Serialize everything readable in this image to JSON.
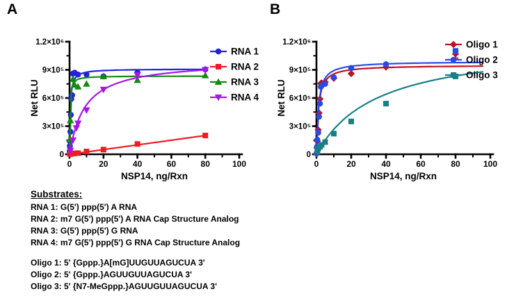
{
  "panels": [
    {
      "label": "A"
    },
    {
      "label": "B"
    }
  ],
  "chart_data": [
    {
      "type": "scatter",
      "panel": "A",
      "xlabel": "NSP14, ng/Rxn",
      "ylabel": "Net RLU",
      "xlim": [
        0,
        100
      ],
      "ylim": [
        0,
        1200000
      ],
      "grid": false,
      "legend_position": "right",
      "x_major_ticks": [
        0,
        20,
        40,
        60,
        80,
        100
      ],
      "x_minor_ticks": [
        10,
        30,
        50,
        70,
        90
      ],
      "y_major_ticks": [
        {
          "value": 0,
          "label": "0"
        },
        {
          "value": 300000,
          "label": "3×10⁵"
        },
        {
          "value": 600000,
          "label": "6×10⁵"
        },
        {
          "value": 900000,
          "label": "9×10⁵"
        },
        {
          "value": 1200000,
          "label": "1.2×10⁶"
        }
      ],
      "y_minor_ticks": [
        150000,
        450000,
        750000,
        1050000
      ],
      "series": [
        {
          "name": "RNA 1",
          "color": "#2323dd",
          "marker": "circle",
          "fit": {
            "type": "hyperbolic",
            "vmax": 910000,
            "km": 0.4
          },
          "curve_xmax": 80,
          "points": [
            [
              0.1,
              30000
            ],
            [
              0.2,
              90000
            ],
            [
              0.3,
              140000
            ],
            [
              0.5,
              240000
            ],
            [
              0.75,
              420000
            ],
            [
              1,
              590000
            ],
            [
              1.5,
              630000
            ],
            [
              2,
              860000
            ],
            [
              3,
              870000
            ],
            [
              5,
              850000
            ],
            [
              10,
              850000
            ],
            [
              20,
              830000
            ],
            [
              40,
              870000
            ],
            [
              80,
              905000
            ]
          ]
        },
        {
          "name": "RNA 2",
          "color": "#ee1c25",
          "marker": "square",
          "fit": {
            "type": "linear",
            "slope": 2500,
            "intercept": 0
          },
          "curve_xmax": 80,
          "points": [
            [
              0.25,
              2000
            ],
            [
              0.5,
              4000
            ],
            [
              1,
              6000
            ],
            [
              2,
              8000
            ],
            [
              3,
              10000
            ],
            [
              5,
              12000
            ],
            [
              10,
              30000
            ],
            [
              20,
              50000
            ],
            [
              40,
              110000
            ],
            [
              80,
              200000
            ]
          ]
        },
        {
          "name": "RNA 3",
          "color": "#128a12",
          "marker": "triangle-up",
          "fit": {
            "type": "hyperbolic",
            "vmax": 835000,
            "km": 0.22
          },
          "curve_xmax": 80,
          "points": [
            [
              0.25,
              160000
            ],
            [
              0.5,
              360000
            ],
            [
              2,
              800000
            ],
            [
              3,
              740000
            ],
            [
              5,
              720000
            ],
            [
              10,
              750000
            ],
            [
              20,
              830000
            ],
            [
              40,
              790000
            ],
            [
              80,
              840000
            ]
          ]
        },
        {
          "name": "RNA 4",
          "color": "#a915e8",
          "marker": "triangle-down",
          "fit": {
            "type": "hyperbolic",
            "vmax": 1000000,
            "km": 9
          },
          "curve_xmax": 80,
          "points": [
            [
              0.5,
              40000
            ],
            [
              2,
              150000
            ],
            [
              4,
              280000
            ],
            [
              5,
              330000
            ],
            [
              10,
              470000
            ],
            [
              20,
              690000
            ],
            [
              40,
              845000
            ],
            [
              80,
              900000
            ]
          ]
        }
      ]
    },
    {
      "type": "scatter",
      "panel": "B",
      "xlabel": "NSP14, ng/Rxn",
      "ylabel": "Net RLU",
      "xlim": [
        0,
        100
      ],
      "ylim": [
        0,
        1200000
      ],
      "grid": false,
      "legend_position": "right",
      "x_major_ticks": [
        0,
        20,
        40,
        60,
        80,
        100
      ],
      "x_minor_ticks": [
        10,
        30,
        50,
        70,
        90
      ],
      "y_major_ticks": [
        {
          "value": 0,
          "label": "0"
        },
        {
          "value": 300000,
          "label": "3×10⁵"
        },
        {
          "value": 600000,
          "label": "6×10⁵"
        },
        {
          "value": 900000,
          "label": "9×10⁵"
        },
        {
          "value": 1200000,
          "label": "1.2×10⁶"
        }
      ],
      "y_minor_ticks": [
        150000,
        450000,
        750000,
        1050000
      ],
      "series": [
        {
          "name": "Oligo 1",
          "color": "#c01120",
          "marker": "diamond",
          "fit": {
            "type": "hyperbolic",
            "vmax": 950000,
            "km": 1.1
          },
          "curve_xmax": 96,
          "points": [
            [
              0.1,
              5000
            ],
            [
              0.3,
              70000
            ],
            [
              0.5,
              140000
            ],
            [
              1,
              260000
            ],
            [
              1.5,
              440000
            ],
            [
              2,
              590000
            ],
            [
              2.5,
              755000
            ],
            [
              3,
              760000
            ],
            [
              5,
              770000
            ],
            [
              10,
              810000
            ],
            [
              20,
              860000
            ],
            [
              40,
              930000
            ],
            [
              80,
              1070000
            ]
          ],
          "error_bars": [
            {
              "x": 80,
              "y": 1070000,
              "err": 45000
            }
          ]
        },
        {
          "name": "Oligo 2",
          "color": "#2b4be0",
          "marker": "circle",
          "fit": {
            "type": "hyperbolic",
            "vmax": 990000,
            "km": 1.1
          },
          "curve_xmax": 96,
          "points": [
            [
              0.1,
              10000
            ],
            [
              0.3,
              80000
            ],
            [
              0.5,
              155000
            ],
            [
              1,
              230000
            ],
            [
              1.5,
              400000
            ],
            [
              2,
              540000
            ],
            [
              2.5,
              720000
            ],
            [
              3,
              730000
            ],
            [
              5,
              750000
            ],
            [
              10,
              820000
            ],
            [
              20,
              920000
            ],
            [
              40,
              960000
            ],
            [
              80,
              1100000
            ]
          ],
          "error_bars": [
            {
              "x": 80,
              "y": 1100000,
              "err": 25000
            }
          ]
        },
        {
          "name": "Oligo 3",
          "color": "#177f85",
          "marker": "square",
          "fit": {
            "type": "hyperbolic",
            "vmax": 1200000,
            "km": 35
          },
          "curve_xmax": 96,
          "points": [
            [
              0.5,
              30000
            ],
            [
              1,
              60000
            ],
            [
              2,
              80000
            ],
            [
              3,
              100000
            ],
            [
              5,
              130000
            ],
            [
              10,
              220000
            ],
            [
              20,
              350000
            ],
            [
              40,
              540000
            ],
            [
              80,
              830000
            ]
          ]
        }
      ]
    }
  ],
  "substrates": {
    "title": "Substrates:",
    "rna_lines": [
      "RNA 1: G(5') ppp(5') A RNA",
      "RNA 2: m7 G(5') ppp(5') A RNA Cap Structure Analog",
      "RNA 3: G(5') ppp(5') G RNA",
      "RNA 4: m7 G(5') ppp(5') G RNA Cap Structure Analog"
    ],
    "oligo_lines": [
      "Oligo 1: 5' {Gppp.}A[mG]UUGUUAGUCUA 3'",
      "Oligo 2: 5' {Gppp.}AGUUGUUAGUCUA 3'",
      "Oligo 3: 5' {N7-MeGppp.}AGUUGUUAGUCUA 3'"
    ]
  }
}
